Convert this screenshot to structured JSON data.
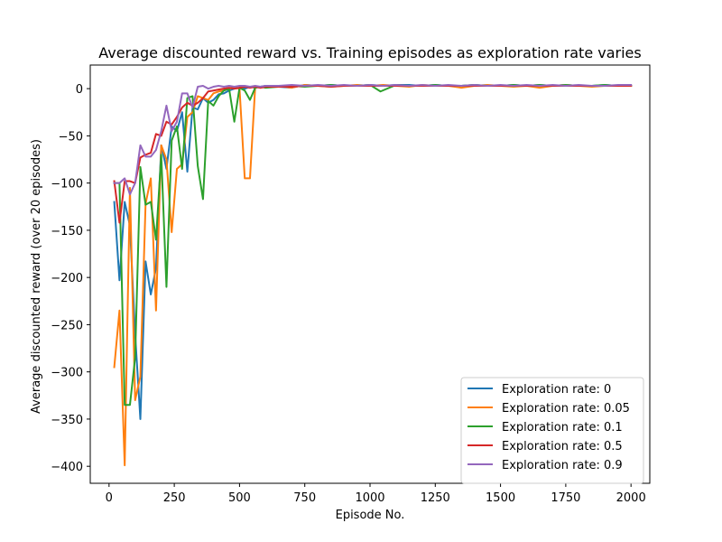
{
  "chart_data": {
    "type": "line",
    "title": "Average discounted reward vs. Training episodes as exploration rate varies",
    "xlabel": "Episode No.",
    "ylabel": "Average discounted reward (over 20 episodes)",
    "xlim": [
      -72,
      2072
    ],
    "ylim": [
      -418,
      25
    ],
    "xticks": [
      0,
      250,
      500,
      750,
      1000,
      1250,
      1500,
      1750,
      2000
    ],
    "yticks": [
      -400,
      -350,
      -300,
      -250,
      -200,
      -150,
      -100,
      -50,
      0
    ],
    "grid": false,
    "legend_position": "lower right",
    "series": [
      {
        "name": "Exploration rate: 0",
        "color": "#1f77b4",
        "x": [
          20,
          40,
          60,
          80,
          100,
          120,
          140,
          160,
          180,
          200,
          220,
          240,
          260,
          280,
          300,
          320,
          340,
          360,
          380,
          400,
          420,
          440,
          460,
          480,
          500,
          520,
          540,
          560,
          580,
          600,
          650,
          700,
          750,
          800,
          850,
          900,
          950,
          1000,
          1050,
          1100,
          1150,
          1200,
          1250,
          1300,
          1350,
          1400,
          1450,
          1500,
          1550,
          1600,
          1650,
          1700,
          1750,
          1800,
          1850,
          1900,
          1950,
          2000
        ],
        "y": [
          -120,
          -203,
          -120,
          -145,
          -260,
          -350,
          -183,
          -218,
          -190,
          -60,
          -85,
          -40,
          -45,
          -25,
          -88,
          -20,
          -22,
          -10,
          -15,
          -12,
          -6,
          -5,
          -2,
          0,
          1,
          0,
          2,
          1,
          2,
          3,
          2,
          1,
          4,
          3,
          4,
          3,
          3,
          4,
          3,
          4,
          4,
          3,
          4,
          3,
          3,
          4,
          3,
          3,
          4,
          3,
          4,
          3,
          4,
          3,
          3,
          4,
          3,
          3
        ]
      },
      {
        "name": "Exploration rate: 0.05",
        "color": "#ff7f0e",
        "x": [
          20,
          40,
          60,
          80,
          100,
          120,
          140,
          160,
          180,
          200,
          220,
          240,
          260,
          280,
          300,
          320,
          340,
          360,
          380,
          400,
          420,
          440,
          460,
          480,
          500,
          520,
          540,
          560,
          580,
          600,
          650,
          700,
          750,
          800,
          850,
          900,
          950,
          1000,
          1050,
          1100,
          1150,
          1200,
          1250,
          1300,
          1350,
          1400,
          1450,
          1500,
          1550,
          1600,
          1650,
          1700,
          1750,
          1800,
          1850,
          1900,
          1950,
          2000
        ],
        "y": [
          -295,
          -235,
          -399,
          -105,
          -330,
          -305,
          -122,
          -95,
          -235,
          -60,
          -75,
          -152,
          -85,
          -80,
          -30,
          -25,
          -8,
          -10,
          -12,
          -5,
          -3,
          -2,
          0,
          1,
          0,
          -95,
          -95,
          2,
          1,
          2,
          3,
          1,
          4,
          3,
          2,
          3,
          4,
          3,
          4,
          3,
          2,
          4,
          3,
          3,
          1,
          3,
          4,
          3,
          2,
          3,
          1,
          3,
          4,
          3,
          2,
          3,
          3,
          3
        ]
      },
      {
        "name": "Exploration rate: 0.1",
        "color": "#2ca02c",
        "x": [
          20,
          40,
          60,
          80,
          100,
          120,
          140,
          160,
          180,
          200,
          220,
          240,
          260,
          280,
          300,
          320,
          340,
          360,
          380,
          400,
          420,
          440,
          460,
          480,
          500,
          520,
          540,
          560,
          580,
          600,
          650,
          700,
          750,
          800,
          850,
          900,
          950,
          1000,
          1040,
          1100,
          1150,
          1200,
          1250,
          1300,
          1350,
          1400,
          1450,
          1500,
          1550,
          1600,
          1650,
          1700,
          1750,
          1800,
          1850,
          1900,
          1950,
          2000
        ],
        "y": [
          -100,
          -100,
          -335,
          -335,
          -285,
          -83,
          -123,
          -120,
          -160,
          -70,
          -210,
          -55,
          -40,
          -85,
          -10,
          -8,
          -82,
          -117,
          -13,
          -18,
          -8,
          -2,
          0,
          -35,
          1,
          -2,
          -12,
          1,
          2,
          1,
          2,
          3,
          2,
          3,
          4,
          3,
          3,
          4,
          -3,
          4,
          3,
          3,
          4,
          3,
          3,
          4,
          3,
          3,
          4,
          3,
          4,
          3,
          4,
          3,
          3,
          4,
          3,
          3
        ]
      },
      {
        "name": "Exploration rate: 0.5",
        "color": "#d62728",
        "x": [
          20,
          40,
          60,
          80,
          100,
          120,
          140,
          160,
          180,
          200,
          220,
          240,
          260,
          280,
          300,
          320,
          340,
          360,
          380,
          400,
          420,
          440,
          460,
          480,
          500,
          520,
          540,
          560,
          580,
          600,
          650,
          700,
          750,
          800,
          850,
          900,
          950,
          1000,
          1050,
          1100,
          1150,
          1200,
          1250,
          1300,
          1350,
          1400,
          1450,
          1500,
          1550,
          1600,
          1650,
          1700,
          1750,
          1800,
          1850,
          1900,
          1950,
          2000
        ],
        "y": [
          -98,
          -142,
          -98,
          -98,
          -100,
          -73,
          -70,
          -68,
          -48,
          -50,
          -35,
          -38,
          -30,
          -20,
          -15,
          -18,
          -15,
          -10,
          -3,
          -2,
          -1,
          0,
          1,
          0,
          1,
          2,
          1,
          2,
          1,
          2,
          2,
          2,
          3,
          3,
          2,
          3,
          3,
          3,
          3,
          3,
          3,
          3,
          3,
          3,
          3,
          3,
          3,
          3,
          3,
          3,
          3,
          3,
          3,
          3,
          3,
          3,
          3,
          3
        ]
      },
      {
        "name": "Exploration rate: 0.9",
        "color": "#9467bd",
        "x": [
          20,
          40,
          60,
          80,
          100,
          120,
          140,
          160,
          180,
          200,
          220,
          240,
          260,
          280,
          300,
          320,
          340,
          360,
          380,
          400,
          420,
          440,
          460,
          480,
          500,
          520,
          540,
          560,
          580,
          600,
          650,
          700,
          750,
          800,
          850,
          900,
          950,
          1000,
          1050,
          1100,
          1150,
          1200,
          1250,
          1300,
          1350,
          1400,
          1450,
          1500,
          1550,
          1600,
          1650,
          1700,
          1750,
          1800,
          1850,
          1900,
          1950,
          2000
        ],
        "y": [
          -100,
          -100,
          -95,
          -112,
          -100,
          -60,
          -72,
          -72,
          -65,
          -45,
          -18,
          -45,
          -35,
          -5,
          -5,
          -20,
          2,
          3,
          0,
          2,
          3,
          2,
          3,
          2,
          3,
          3,
          2,
          3,
          2,
          3,
          3,
          4,
          3,
          4,
          3,
          4,
          3,
          4,
          3,
          4,
          3,
          4,
          3,
          4,
          3,
          4,
          3,
          4,
          3,
          4,
          3,
          4,
          3,
          4,
          3,
          3,
          4,
          4
        ]
      }
    ]
  }
}
